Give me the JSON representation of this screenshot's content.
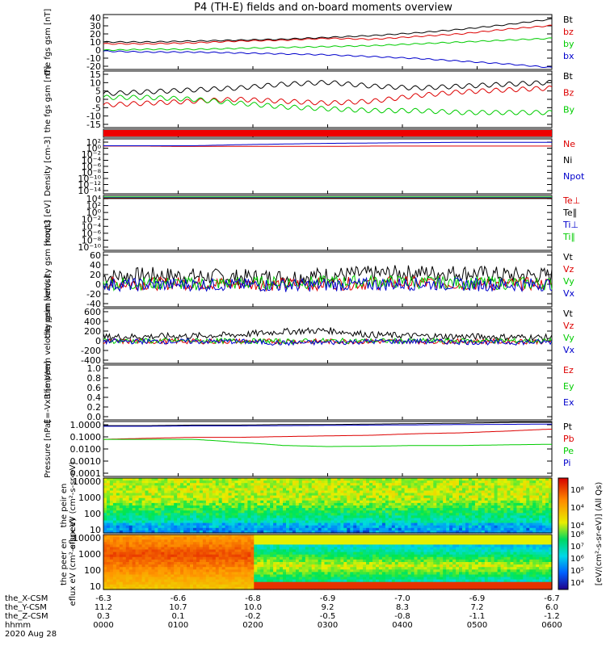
{
  "title": "P4 (TH-E) fields and on-board moments overview",
  "colors": {
    "black": "#000000",
    "red": "#dd0000",
    "green": "#00cc00",
    "blue": "#0000cc"
  },
  "chart_data": [
    {
      "type": "line",
      "ylabel": "the fgs gsm [nT]",
      "yticks": [
        "40",
        "30",
        "20",
        "10",
        "0",
        "-10",
        "-20"
      ],
      "ylim": [
        -20,
        40
      ],
      "series": [
        {
          "name": "Bt",
          "values": [
            10,
            10,
            11,
            12,
            13,
            15,
            17,
            20,
            24,
            29,
            35
          ]
        },
        {
          "name": "bz",
          "values": [
            8,
            8,
            9,
            11,
            12,
            14,
            13,
            16,
            19,
            24,
            28
          ]
        },
        {
          "name": "by",
          "values": [
            1,
            2,
            2,
            3,
            4,
            5,
            6,
            8,
            10,
            12,
            14
          ]
        },
        {
          "name": "bx",
          "values": [
            0,
            -1,
            -1,
            -2,
            -3,
            -4,
            -6,
            -8,
            -11,
            -14,
            -18
          ]
        }
      ]
    },
    {
      "type": "line",
      "ylabel": "the fgs gsm [nT]",
      "yticks": [
        "15",
        "10",
        "5",
        "0",
        "-5",
        "-10",
        "-15"
      ],
      "ylim": [
        -15,
        15
      ],
      "series": [
        {
          "name": "Bt",
          "values": [
            3,
            4,
            5,
            6,
            8,
            9,
            7,
            6,
            7,
            8,
            9
          ]
        },
        {
          "name": "Bz",
          "values": [
            -3,
            -2,
            -1,
            0,
            -1,
            -2,
            -1,
            2,
            4,
            5,
            6
          ]
        },
        {
          "name": "By",
          "values": [
            1,
            1,
            0,
            -2,
            -4,
            -5,
            -6,
            -6,
            -7,
            -7,
            -7
          ]
        }
      ]
    },
    {
      "type": "bar",
      "ylabel": "",
      "yticks": []
    },
    {
      "type": "line",
      "ylabel": "Density [cm-3]",
      "yticks": [
        "10²",
        "10⁰",
        "10⁻²",
        "10⁻⁴",
        "10⁻⁶",
        "10⁻⁸",
        "10⁻¹⁰",
        "10⁻¹²",
        "10⁻¹⁴"
      ],
      "log": true,
      "series": [
        {
          "name": "Ne",
          "values": [
            -0.1,
            -0.1,
            -0.2,
            -0.2,
            -0.2,
            -0.2,
            -0.1,
            -0.1,
            -0.1,
            -0.1,
            -0.1
          ]
        },
        {
          "name": "Ni"
        },
        {
          "name": "Npot",
          "values": [
            0,
            0,
            0,
            0.3,
            0.5,
            0.7,
            0.8,
            0.9,
            1,
            1,
            1
          ]
        }
      ]
    },
    {
      "type": "line",
      "ylabel": "moqt3 [eV]",
      "yticks": [
        "10⁴",
        "10²",
        "10⁰",
        "10⁻²",
        "10⁻⁴",
        "10⁻⁶",
        "10⁻⁸",
        "10⁻¹⁰"
      ],
      "log": true,
      "series": [
        {
          "name": "Te⊥",
          "values": [
            3.3,
            3.3,
            3.3,
            3.3,
            3.3,
            3.3,
            3.3,
            3.3,
            3.3,
            3.3,
            3.3
          ]
        },
        {
          "name": "Te∥",
          "values": [
            3.2,
            3.2,
            3.2,
            3.2,
            3.2,
            3.2,
            3.2,
            3.2,
            3.2,
            3.2,
            3.2
          ]
        },
        {
          "name": "Ti⊥",
          "values": [
            3.5,
            3.5,
            3.5,
            3.5,
            3.5,
            3.5,
            3.5,
            3.5,
            3.5,
            3.5,
            3.5
          ]
        },
        {
          "name": "Ti∥",
          "values": [
            3.6,
            3.6,
            3.6,
            3.6,
            3.6,
            3.6,
            3.6,
            3.6,
            3.6,
            3.6,
            3.6
          ]
        }
      ]
    },
    {
      "type": "line",
      "ylabel": "the peim velocity gsm [km/s]",
      "yticks": [
        "60",
        "40",
        "20",
        "0",
        "-20",
        "-40"
      ],
      "ylim": [
        -40,
        60
      ],
      "series": [
        {
          "name": "Vt",
          "values": [
            15,
            18,
            16,
            14,
            14,
            18,
            20,
            22,
            22,
            18,
            17
          ]
        },
        {
          "name": "Vz",
          "values": [
            3,
            2,
            3,
            2,
            1,
            2,
            3,
            4,
            2,
            1,
            2
          ]
        },
        {
          "name": "Vy",
          "values": [
            2,
            3,
            2,
            3,
            4,
            5,
            6,
            5,
            4,
            3,
            2
          ]
        },
        {
          "name": "Vx",
          "values": [
            1,
            0,
            1,
            0,
            -1,
            0,
            1,
            2,
            1,
            0,
            1
          ]
        }
      ]
    },
    {
      "type": "line",
      "ylabel": "the peem velocity gsm [km/s]",
      "yticks": [
        "600",
        "400",
        "200",
        "0",
        "-200",
        "-400"
      ],
      "ylim": [
        -400,
        600
      ],
      "series": [
        {
          "name": "Vt",
          "values": [
            80,
            90,
            100,
            120,
            180,
            200,
            120,
            100,
            90,
            80,
            70
          ]
        },
        {
          "name": "Vz",
          "values": [
            0,
            0,
            0,
            0,
            0,
            0,
            0,
            0,
            0,
            0,
            0
          ]
        },
        {
          "name": "Vy",
          "values": [
            10,
            10,
            10,
            10,
            0,
            10,
            10,
            10,
            10,
            10,
            10
          ]
        },
        {
          "name": "Vx",
          "values": [
            0,
            0,
            0,
            0,
            -30,
            -20,
            0,
            0,
            -10,
            -20,
            -10
          ]
        }
      ]
    },
    {
      "type": "line",
      "ylabel": "E=-VxB [mV/m]",
      "yticks": [
        "1.0",
        "0.8",
        "0.6",
        "0.4",
        "0.2",
        "0.0"
      ],
      "ylim": [
        0,
        1
      ],
      "series": [
        {
          "name": "Ez"
        },
        {
          "name": "Ey"
        },
        {
          "name": "Ex"
        }
      ]
    },
    {
      "type": "line",
      "ylabel": "Pressure [nPa]",
      "yticks": [
        "1.0000",
        "0.1000",
        "0.0100",
        "0.0010",
        "0.0001"
      ],
      "log": true,
      "series": [
        {
          "name": "Pt",
          "values": [
            0.5,
            0.5,
            0.55,
            0.55,
            0.6,
            0.6,
            0.65,
            0.7,
            0.75,
            0.85,
            1.0
          ]
        },
        {
          "name": "Pb",
          "values": [
            0.05,
            0.06,
            0.07,
            0.07,
            0.08,
            0.09,
            0.1,
            0.13,
            0.15,
            0.2,
            0.28
          ]
        },
        {
          "name": "Pe",
          "values": [
            0.05,
            0.05,
            0.05,
            0.03,
            0.018,
            0.015,
            0.016,
            0.018,
            0.018,
            0.02,
            0.022
          ]
        },
        {
          "name": "Pi",
          "values": [
            0.45,
            0.45,
            0.48,
            0.48,
            0.5,
            0.52,
            0.55,
            0.57,
            0.6,
            0.62,
            0.65
          ]
        }
      ]
    },
    {
      "type": "heatmap",
      "ylabel": "the peir en eflux eV (cm²-s-sr-eV)",
      "yticks": [
        "10000",
        "1000",
        "100",
        "10"
      ],
      "log": true
    },
    {
      "type": "heatmap",
      "ylabel": "the peer en eflux eV (cm²-s-sr-eV)",
      "yticks": [
        "10000",
        "1000",
        "100",
        "10"
      ],
      "log": true
    }
  ],
  "colorbar": {
    "label": "[eV/(cm²-s-sr-eV)] (All Qs)",
    "top_ticks": [
      "10⁸",
      "10⁴",
      "10⁴"
    ],
    "bottom_ticks": [
      "10⁸",
      "10⁷",
      "10⁶",
      "10⁵",
      "10⁴"
    ]
  },
  "xaxis": {
    "rows": [
      {
        "label": "the_X-CSM",
        "values": [
          "-6.3",
          "-6.6",
          "-6.8",
          "-6.9",
          "-7.0",
          "-6.9",
          "-6.7"
        ]
      },
      {
        "label": "the_Y-CSM",
        "values": [
          "11.2",
          "10.7",
          "10.0",
          "9.2",
          "8.3",
          "7.2",
          "6.0"
        ]
      },
      {
        "label": "the_Z-CSM",
        "values": [
          "0.3",
          "0.1",
          "-0.2",
          "-0.5",
          "-0.8",
          "-1.1",
          "-1.2"
        ]
      },
      {
        "label": "hhmm",
        "values": [
          "0000",
          "0100",
          "0200",
          "0300",
          "0400",
          "0500",
          "0600"
        ]
      }
    ],
    "date": "2020 Aug 28"
  }
}
